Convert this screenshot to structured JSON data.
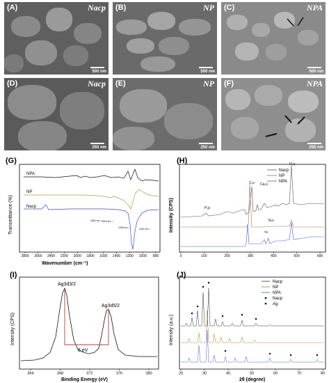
{
  "sem": [
    {
      "panel": "(A)",
      "sample": "Nacp",
      "scale": "500 nm"
    },
    {
      "panel": "(B)",
      "sample": "NP",
      "scale": "500 nm"
    },
    {
      "panel": "(C)",
      "sample": "NPA",
      "scale": "500 nm"
    },
    {
      "panel": "(D)",
      "sample": "Nacp",
      "scale": "250 nm"
    },
    {
      "panel": "(E)",
      "sample": "NP",
      "scale": "250 nm"
    },
    {
      "panel": "(F)",
      "sample": "NPA",
      "scale": "250 nm"
    }
  ],
  "ftir": {
    "panel": "(G)",
    "ylabel": "Transmittance (%)",
    "xlabel": "Wavenumber (cm⁻¹)",
    "xticks": [
      "2800",
      "2600",
      "2400",
      "2200",
      "2000",
      "1800",
      "1600",
      "1400",
      "1200",
      "1000",
      "800"
    ],
    "series": [
      "NPA",
      "NP",
      "Nacp"
    ],
    "annotations": [
      "1602 cm⁻¹",
      "1515 cm⁻¹",
      "1039 cm⁻¹",
      "1022 cm⁻¹"
    ],
    "colors": {
      "NPA": "#111111",
      "NP": "#b89a2a",
      "Nacp": "#2a4fd6"
    }
  },
  "xps": {
    "panel": "(H)",
    "ylabel": "Intensity (CPS)",
    "xticks": [
      "0",
      "100",
      "200",
      "300",
      "400",
      "500",
      "600"
    ],
    "legend": [
      "Nacp",
      "NP",
      "NPA"
    ],
    "peaks": [
      "P₂p",
      "C₁s",
      "Ca₂s",
      "N₁s",
      "Ag",
      "O₁s"
    ],
    "colors": {
      "Nacp": "#555555",
      "NP": "#b06a50",
      "NPA": "#3a5fe0"
    }
  },
  "ag": {
    "panel": "(I)",
    "ylabel": "Intensity (CPS)",
    "xlabel": "Binding Energy (eV)",
    "xticks": [
      "364",
      "368",
      "372",
      "376",
      "380"
    ],
    "peak1": "Ag3d3/2",
    "peak2": "Ag3d5/2",
    "split": "6 eV"
  },
  "xrd": {
    "panel": "(J)",
    "ylabel": "Intensity (a.u.)",
    "xlabel": "2θ (degree)",
    "xticks": [
      "20",
      "30",
      "40",
      "50",
      "60",
      "70",
      "80"
    ],
    "legend": [
      "Nacp",
      "NP",
      "NPA",
      "Nacp",
      "Ag"
    ],
    "colors": {
      "Nacp": "#333333",
      "NP": "#b08020",
      "NPA": "#3a5fe0"
    }
  }
}
